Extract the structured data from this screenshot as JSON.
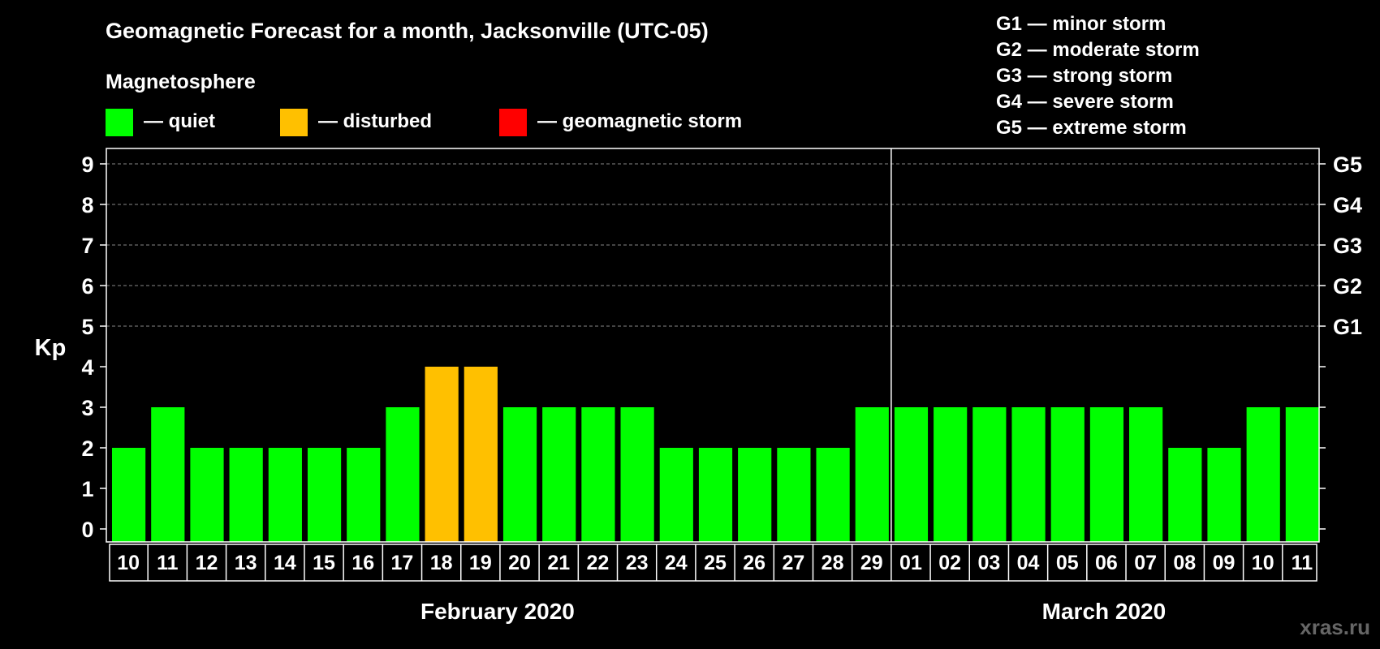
{
  "chart_data": {
    "type": "bar",
    "title": "Geomagnetic Forecast for a month, Jacksonville (UTC-05)",
    "subtitle": "Magnetosphere",
    "ylabel": "Kp",
    "ylim": [
      0,
      9
    ],
    "y_ticks": [
      "0",
      "1",
      "2",
      "3",
      "4",
      "5",
      "6",
      "7",
      "8",
      "9"
    ],
    "grid": true,
    "legend": [
      {
        "label": "— quiet",
        "color": "#00ff00"
      },
      {
        "label": "— disturbed",
        "color": "#ffc000"
      },
      {
        "label": "— geomagnetic storm",
        "color": "#ff0000"
      }
    ],
    "storm_scale": [
      "G1 — minor storm",
      "G2 — moderate storm",
      "G3 — strong storm",
      "G4 — severe storm",
      "G5 — extreme storm"
    ],
    "right_axis_labels": [
      {
        "kp": 5,
        "label": "G1"
      },
      {
        "kp": 6,
        "label": "G2"
      },
      {
        "kp": 7,
        "label": "G3"
      },
      {
        "kp": 8,
        "label": "G4"
      },
      {
        "kp": 9,
        "label": "G5"
      }
    ],
    "categories": [
      "10",
      "11",
      "12",
      "13",
      "14",
      "15",
      "16",
      "17",
      "18",
      "19",
      "20",
      "21",
      "22",
      "23",
      "24",
      "25",
      "26",
      "27",
      "28",
      "29",
      "01",
      "02",
      "03",
      "04",
      "05",
      "06",
      "07",
      "08",
      "09",
      "10",
      "11"
    ],
    "values": [
      2,
      3,
      2,
      2,
      2,
      2,
      2,
      3,
      4,
      4,
      3,
      3,
      3,
      3,
      2,
      2,
      2,
      2,
      2,
      3,
      3,
      3,
      3,
      3,
      3,
      3,
      3,
      2,
      2,
      3,
      3
    ],
    "months": [
      {
        "label": "February 2020",
        "start": 0,
        "count": 20
      },
      {
        "label": "March 2020",
        "start": 20,
        "count": 11
      }
    ],
    "colors": {
      "quiet": "#00ff00",
      "disturbed": "#ffc000",
      "storm": "#ff0000"
    },
    "thresholds": {
      "disturbed": 4,
      "storm": 5
    }
  },
  "watermark": "xras.ru"
}
